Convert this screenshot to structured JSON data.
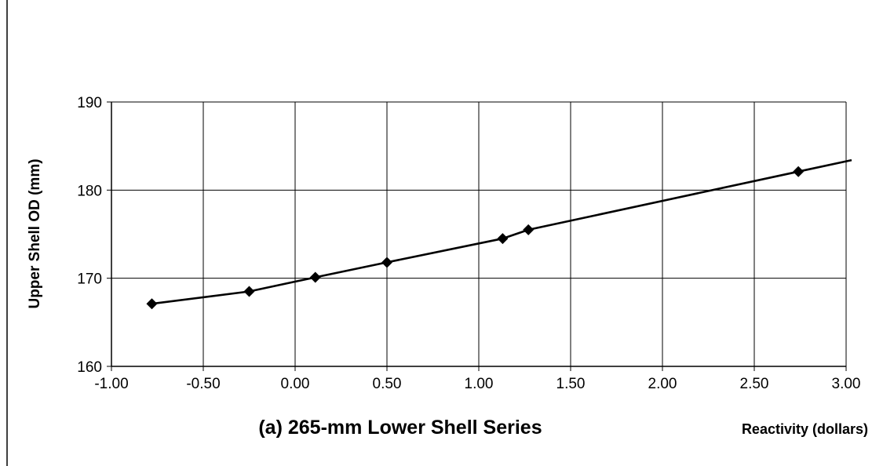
{
  "chart_data": {
    "type": "line",
    "title": "(a) 265-mm Lower Shell Series",
    "xlabel": "Reactivity (dollars)",
    "ylabel": "Upper Shell OD (mm)",
    "xlim": [
      -1.0,
      3.0
    ],
    "ylim": [
      160,
      190
    ],
    "x_ticks": [
      "-1.00",
      "-0.50",
      "0.00",
      "0.50",
      "1.00",
      "1.50",
      "2.00",
      "2.50",
      "3.00"
    ],
    "y_ticks": [
      "160",
      "170",
      "180",
      "190"
    ],
    "grid": true,
    "marker": "diamond",
    "series": [
      {
        "points": [
          {
            "x": -0.78,
            "y": 167.1
          },
          {
            "x": -0.25,
            "y": 168.5
          },
          {
            "x": 0.11,
            "y": 170.1
          },
          {
            "x": 0.5,
            "y": 171.8
          },
          {
            "x": 1.13,
            "y": 174.5
          },
          {
            "x": 1.27,
            "y": 175.5
          },
          {
            "x": 2.74,
            "y": 182.1
          }
        ],
        "trend_end": {
          "x": 3.03,
          "y": 183.4
        }
      }
    ],
    "colors": {
      "line": "#000000",
      "grid": "#000000",
      "marker": "#000000"
    }
  }
}
